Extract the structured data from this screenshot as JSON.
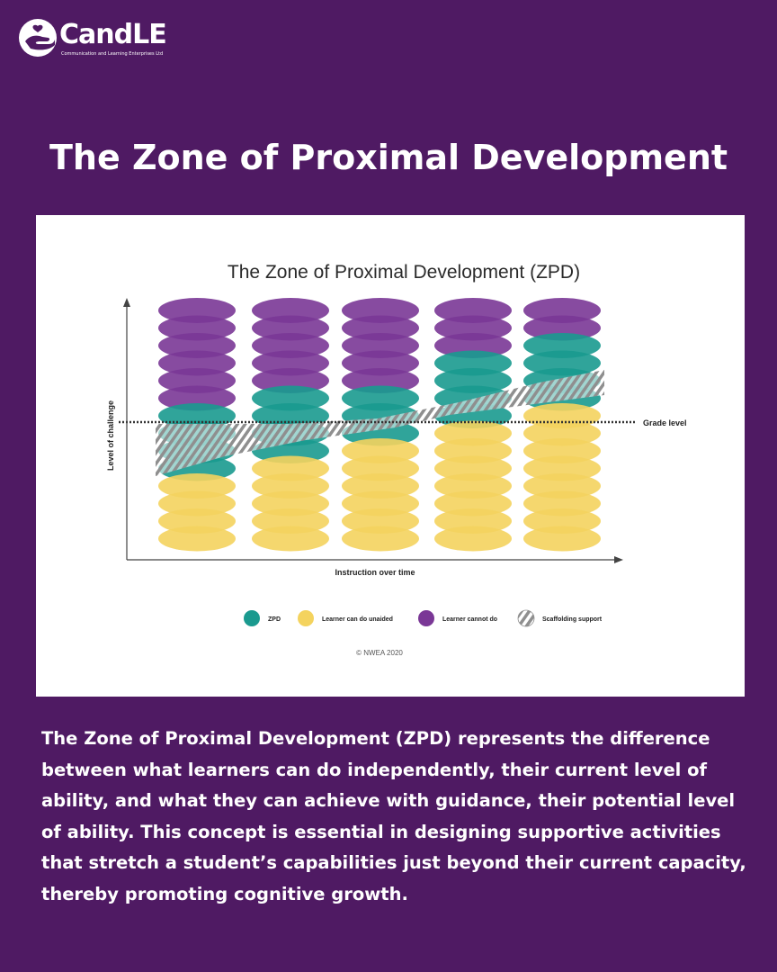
{
  "brand": {
    "name": "CandLE",
    "tagline": "Communication and Learning Enterprises Ltd",
    "logo_icon": "hands-heart-icon"
  },
  "page_title": "The Zone of Proximal Development",
  "figure": {
    "title": "The Zone of Proximal Development (ZPD)",
    "y_axis_label": "Level of challenge",
    "x_axis_label": "Instruction over time",
    "reference_line_label": "Grade level",
    "credit": "© NWEA 2020",
    "colors": {
      "zpd": "#1a9a8f",
      "unaided": "#f4d35e",
      "cannot": "#7a3796",
      "scaffold": "#9a9a9a"
    },
    "legend": [
      {
        "key": "zpd",
        "label": "ZPD"
      },
      {
        "key": "unaided",
        "label": "Learner can do unaided"
      },
      {
        "key": "cannot",
        "label": "Learner cannot do"
      },
      {
        "key": "scaffold",
        "label": "Scaffolding support"
      }
    ],
    "columns": [
      {
        "cannot": 6,
        "zpd": 4,
        "unaided": 4
      },
      {
        "cannot": 5,
        "zpd": 4,
        "unaided": 5
      },
      {
        "cannot": 5,
        "zpd": 3,
        "unaided": 6
      },
      {
        "cannot": 3,
        "zpd": 4,
        "unaided": 7
      },
      {
        "cannot": 2,
        "zpd": 4,
        "unaided": 8
      }
    ]
  },
  "description": "The Zone of Proximal Development (ZPD) represents the difference between what learners can do independently, their current level of ability, and what they can achieve with guidance, their potential level of ability. This concept is essential in designing supportive activities that stretch a student’s capabilities just beyond their current capacity, thereby promoting cognitive growth."
}
